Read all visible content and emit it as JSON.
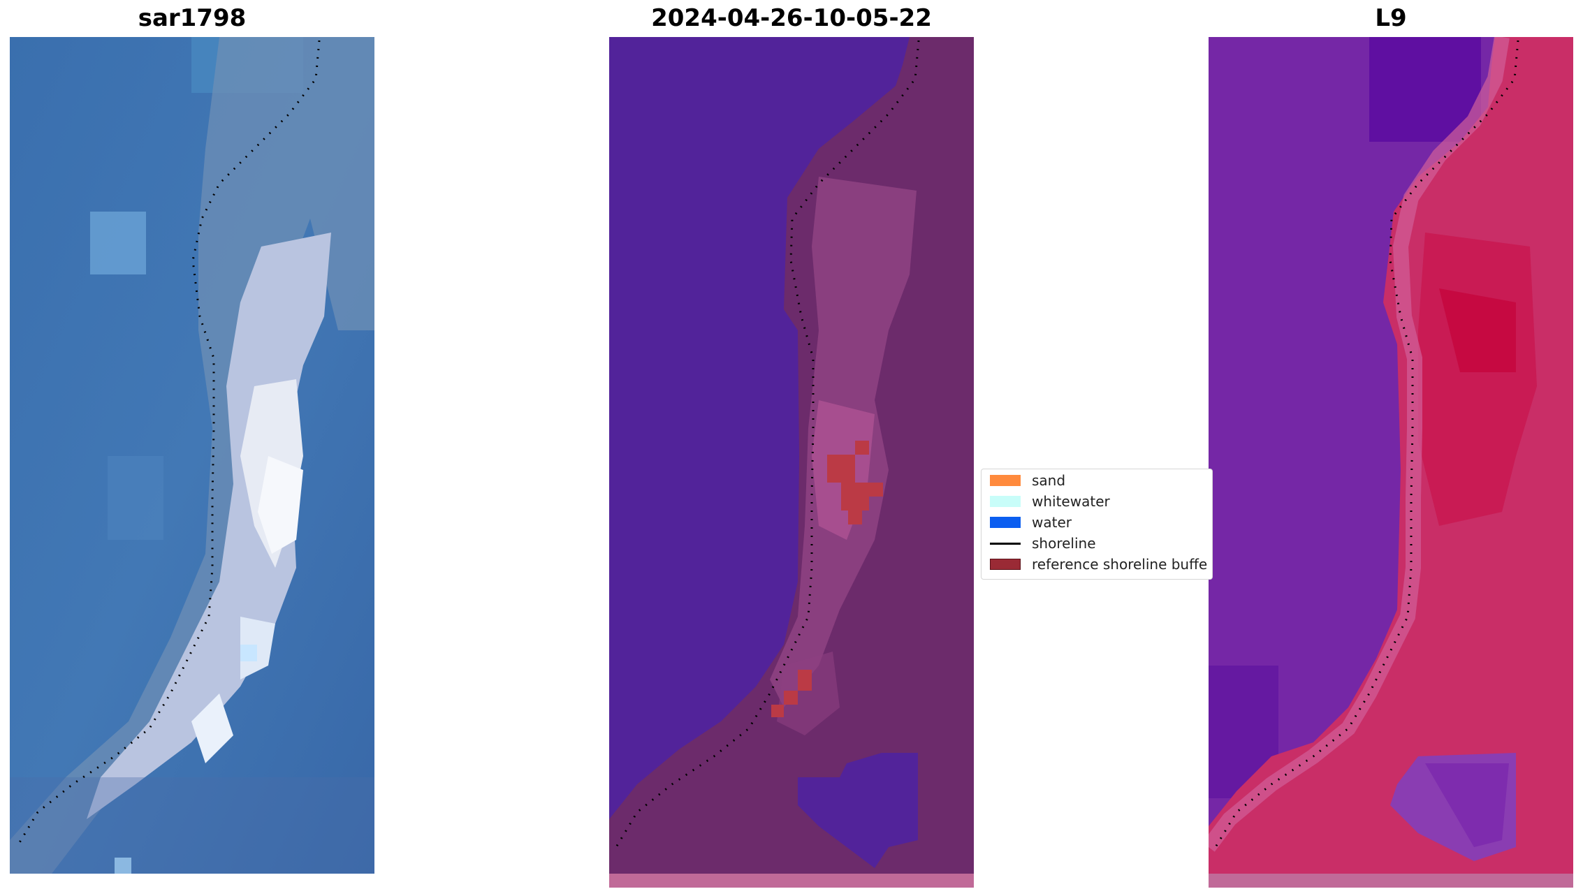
{
  "panels": [
    {
      "title": "sar1798",
      "image": "rgb-satellite-composite"
    },
    {
      "title": "2024-04-26-10-05-22",
      "image": "classified-satellite-image"
    },
    {
      "title": "L9",
      "image": "ndwi-index-image"
    }
  ],
  "legend": {
    "items": [
      {
        "label": "sand",
        "color": "#ff8a3d"
      },
      {
        "label": "whitewater",
        "color": "#c8fdf9"
      },
      {
        "label": "water",
        "color": "#0b5ef0"
      },
      {
        "label": "shoreline",
        "color": "#000000"
      },
      {
        "label": "reference shoreline buffe",
        "color": "#9a2a35"
      }
    ]
  },
  "colors": {
    "p1_water": "#3f74b2",
    "p1_shallow": "#6fa6d8",
    "p1_beach": "#c9d8ec",
    "p1_bright": "#f3f6fb",
    "p2_water": "#52239a",
    "p2_land": "#6c2b6b",
    "p2_buffer": "#bb3a45",
    "p3_water": "#6a1fa0",
    "p3_land": "#c21c58",
    "shoreline_dots": "#000000"
  }
}
